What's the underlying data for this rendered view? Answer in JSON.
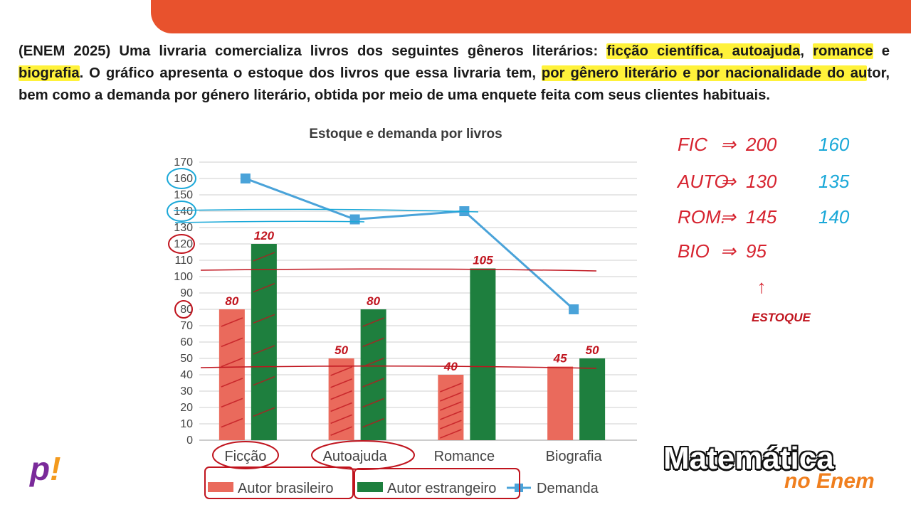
{
  "header": {
    "accent": "#e8522d"
  },
  "question": {
    "t1": "(ENEM 2025) Uma livraria comercializa livros dos seguintes gêneros literários: ",
    "h1": "ficção científica, autoajuda",
    "t2": ", ",
    "h2": "romance",
    "t3": " e ",
    "h3": "biografia",
    "t4": ". O gráfico apresenta o estoque dos livros que essa livraria tem, ",
    "h4": "por gênero literário e por nacionalidade do au",
    "t5": "tor, bem como a demanda por género literário, obtida por meio de uma enquete feita com seus clientes habituais."
  },
  "chart_data": {
    "type": "bar",
    "title": "Estoque e demanda por livros",
    "categories": [
      "Ficção",
      "Autoajuda",
      "Romance",
      "Biografia"
    ],
    "series": [
      {
        "name": "Autor brasileiro",
        "kind": "bar",
        "color": "#ea6a5c",
        "values": [
          80,
          50,
          40,
          45
        ]
      },
      {
        "name": "Autor estrangeiro",
        "kind": "bar",
        "color": "#1e7f3e",
        "values": [
          120,
          80,
          105,
          50
        ]
      },
      {
        "name": "Demanda",
        "kind": "line",
        "color": "#4aa3d9",
        "values": [
          160,
          135,
          140,
          80
        ]
      }
    ],
    "ylim": [
      0,
      170
    ],
    "yticks": [
      0,
      10,
      20,
      30,
      40,
      50,
      60,
      70,
      80,
      90,
      100,
      110,
      120,
      130,
      140,
      150,
      160,
      170
    ],
    "grid": true,
    "legend": "bottom"
  },
  "annotations": {
    "bar_labels": [
      "80",
      "120",
      "50",
      "80",
      "40",
      "105",
      "45",
      "50"
    ],
    "notes": [
      {
        "label": "FIC",
        "stock": "200",
        "demand": "160"
      },
      {
        "label": "AUTO",
        "stock": "130",
        "demand": "135"
      },
      {
        "label": "ROM.",
        "stock": "145",
        "demand": "140"
      },
      {
        "label": "BIO",
        "stock": "95",
        "demand": ""
      }
    ],
    "arrow": "↑",
    "estoque": "ESTOQUE"
  },
  "brand": {
    "line1": "Matemática",
    "line2": "no Enem",
    "logo_p": "p",
    "logo_bang": "!"
  }
}
